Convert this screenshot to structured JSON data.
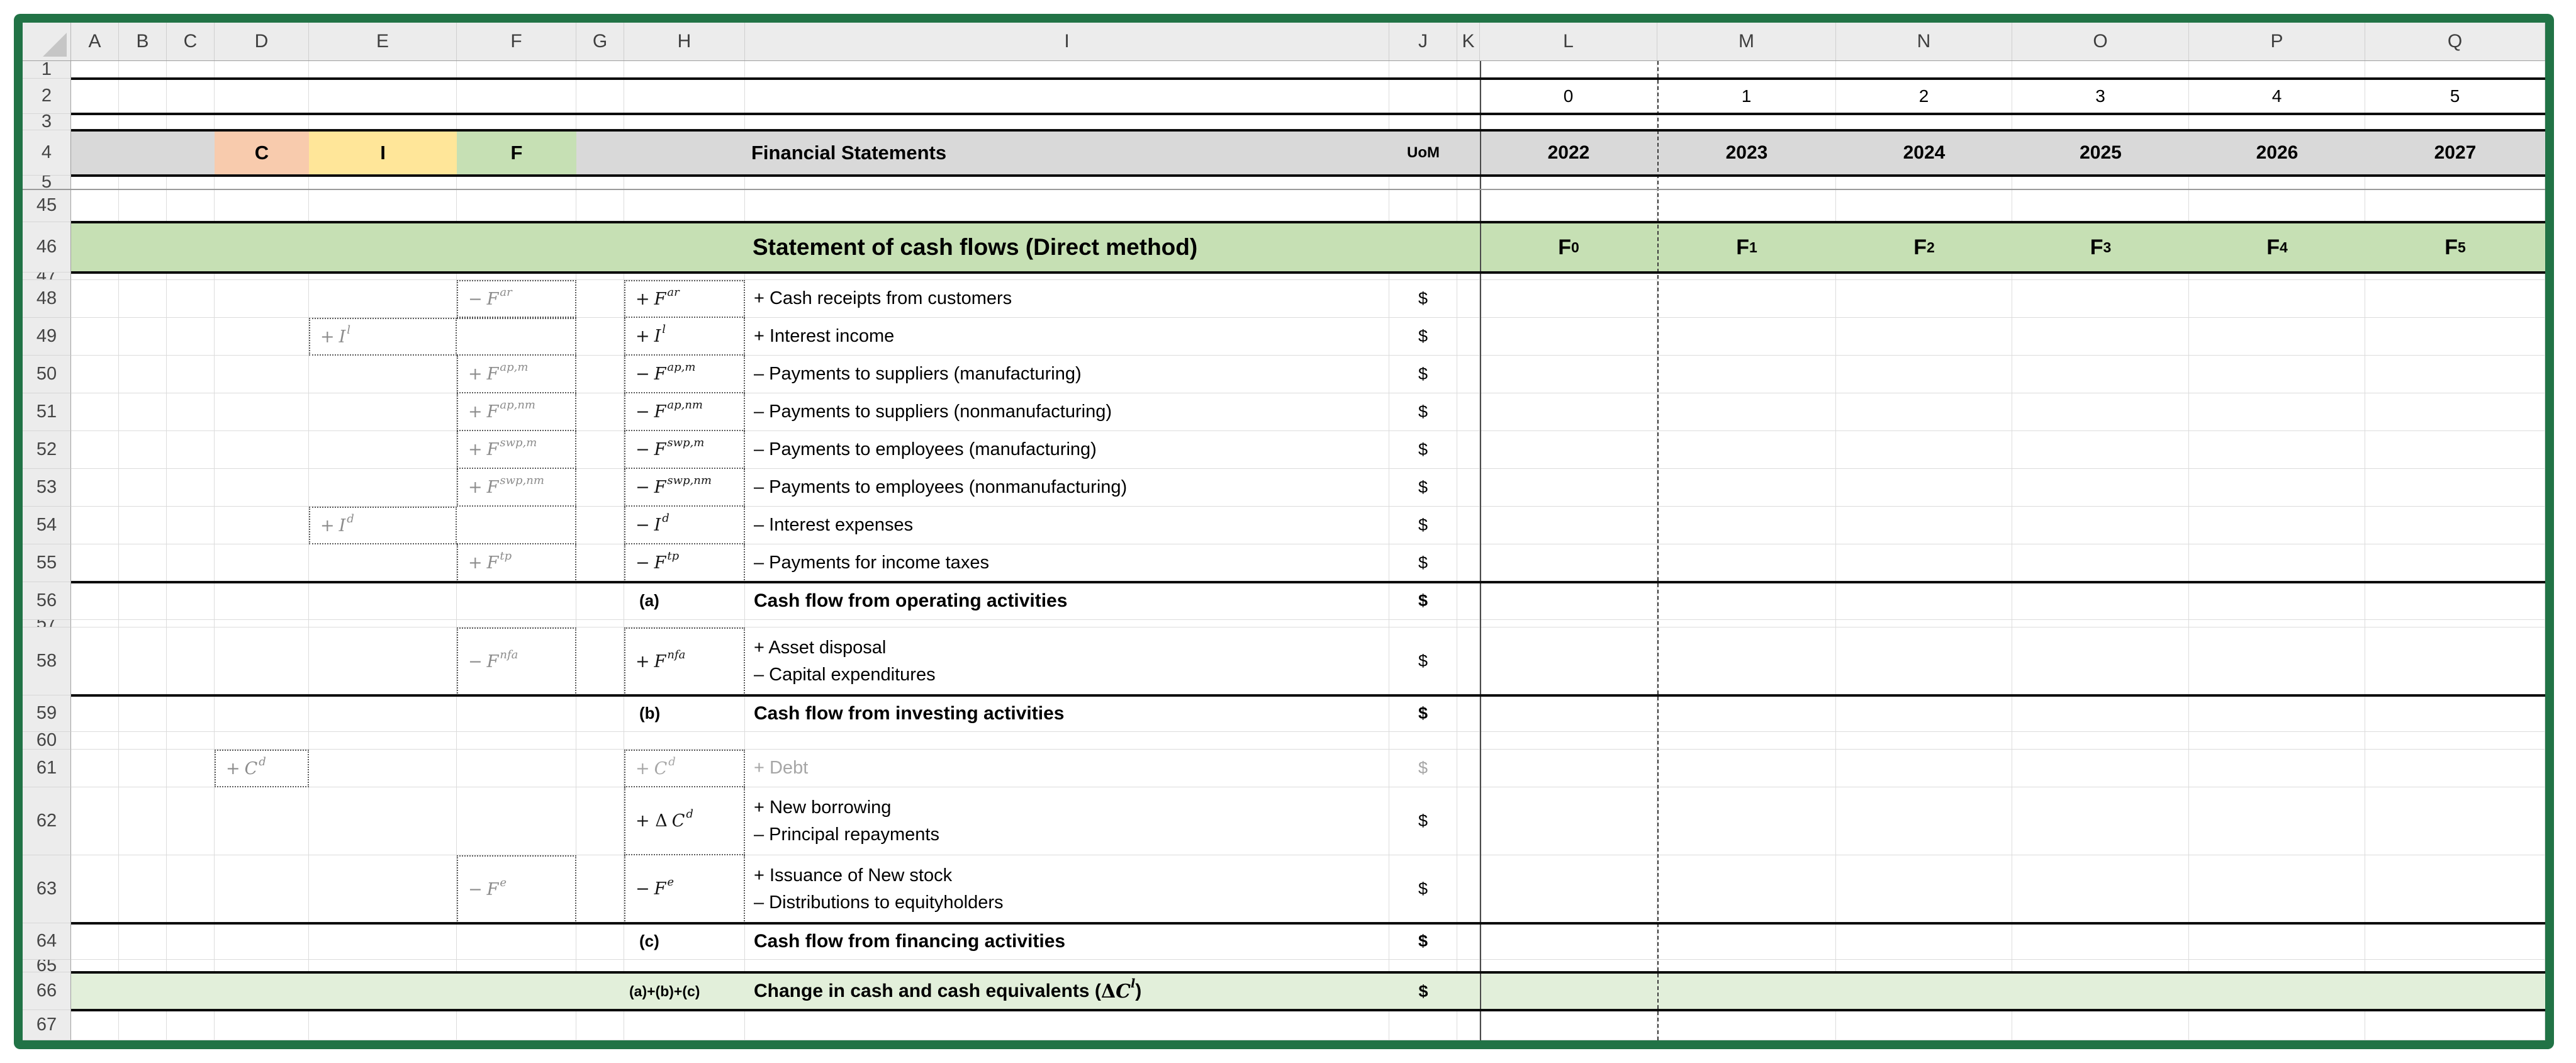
{
  "app": {
    "frame_color": "#217346"
  },
  "sheet": {
    "columns": [
      "A",
      "B",
      "C",
      "D",
      "E",
      "F",
      "G",
      "H",
      "I",
      "J",
      "K",
      "L",
      "M",
      "N",
      "O",
      "P",
      "Q"
    ],
    "colors": {
      "band_gray": "#d9d9d9",
      "band_green": "#c6e0b4",
      "band_lightgreen": "#e2efda",
      "cell_c": "#f8cbad",
      "cell_i": "#ffe699",
      "cell_f": "#c6e0b4"
    },
    "rows": [
      {
        "n": "1",
        "cells": []
      },
      {
        "n": "2",
        "cells": [
          {
            "c": "L",
            "k": "num",
            "t": "0"
          },
          {
            "c": "M",
            "k": "num",
            "t": "1"
          },
          {
            "c": "N",
            "k": "num",
            "t": "2"
          },
          {
            "c": "O",
            "k": "num",
            "t": "3"
          },
          {
            "c": "P",
            "k": "num",
            "t": "4"
          },
          {
            "c": "Q",
            "k": "num",
            "t": "5"
          }
        ]
      },
      {
        "n": "3",
        "cells": []
      },
      {
        "n": "4",
        "cells": [
          {
            "c": "D",
            "k": "cif",
            "t": "C",
            "bg": "cell_c"
          },
          {
            "c": "E",
            "k": "cif",
            "t": "I",
            "bg": "cell_i"
          },
          {
            "c": "F",
            "k": "cif",
            "t": "F",
            "bg": "cell_f"
          },
          {
            "c": "I",
            "k": "title",
            "t": "Financial Statements"
          },
          {
            "c": "J",
            "k": "uom",
            "t": "UoM"
          },
          {
            "c": "L",
            "k": "year",
            "t": "2022"
          },
          {
            "c": "M",
            "k": "year",
            "t": "2023"
          },
          {
            "c": "N",
            "k": "year",
            "t": "2024"
          },
          {
            "c": "O",
            "k": "year",
            "t": "2025"
          },
          {
            "c": "P",
            "k": "year",
            "t": "2026"
          },
          {
            "c": "Q",
            "k": "year",
            "t": "2027"
          }
        ]
      },
      {
        "n": "5",
        "cells": []
      },
      {
        "n": "45",
        "cells": []
      },
      {
        "n": "46",
        "cells": [
          {
            "c": "I",
            "k": "bigtitle",
            "t": "Statement of cash flows (Direct method)"
          },
          {
            "c": "L",
            "k": "fsub",
            "t": "F",
            "sub": "0"
          },
          {
            "c": "M",
            "k": "fsub",
            "t": "F",
            "sub": "1"
          },
          {
            "c": "N",
            "k": "fsub",
            "t": "F",
            "sub": "2"
          },
          {
            "c": "O",
            "k": "fsub",
            "t": "F",
            "sub": "3"
          },
          {
            "c": "P",
            "k": "fsub",
            "t": "F",
            "sub": "4"
          },
          {
            "c": "Q",
            "k": "fsub",
            "t": "F",
            "sub": "5"
          }
        ]
      },
      {
        "n": "47",
        "cells": []
      },
      {
        "n": "48",
        "cells": [
          {
            "c": "F",
            "k": "fml",
            "v": "gray",
            "m": {
              "s": "−",
              "b": "F",
              "p": "ar"
            }
          },
          {
            "c": "H",
            "k": "fml",
            "v": "black",
            "m": {
              "s": "+",
              "b": "F",
              "p": "ar"
            }
          },
          {
            "c": "I",
            "k": "lbl",
            "t": "+ Cash receipts from customers"
          },
          {
            "c": "J",
            "k": "usd",
            "t": "$"
          }
        ]
      },
      {
        "n": "49",
        "cells": [
          {
            "c": "E",
            "k": "fml",
            "v": "gray",
            "m": {
              "s": "+",
              "b": "I",
              "p": "l"
            }
          },
          {
            "c": "F",
            "k": "box"
          },
          {
            "c": "H",
            "k": "fml",
            "v": "black",
            "nt": 1,
            "m": {
              "s": "+",
              "b": "I",
              "p": "l"
            }
          },
          {
            "c": "I",
            "k": "lbl",
            "t": "+ Interest income"
          },
          {
            "c": "J",
            "k": "usd",
            "t": "$"
          }
        ]
      },
      {
        "n": "50",
        "cells": [
          {
            "c": "F",
            "k": "fml",
            "v": "gray",
            "nt": 1,
            "m": {
              "s": "+",
              "b": "F",
              "p": "ap,m"
            }
          },
          {
            "c": "H",
            "k": "fml",
            "v": "black",
            "nt": 1,
            "m": {
              "s": "−",
              "b": "F",
              "p": "ap,m"
            }
          },
          {
            "c": "I",
            "k": "lbl",
            "t": "– Payments to suppliers (manufacturing)"
          },
          {
            "c": "J",
            "k": "usd",
            "t": "$"
          }
        ]
      },
      {
        "n": "51",
        "cells": [
          {
            "c": "F",
            "k": "fml",
            "v": "gray",
            "nt": 1,
            "m": {
              "s": "+",
              "b": "F",
              "p": "ap,nm"
            }
          },
          {
            "c": "H",
            "k": "fml",
            "v": "black",
            "nt": 1,
            "m": {
              "s": "−",
              "b": "F",
              "p": "ap,nm"
            }
          },
          {
            "c": "I",
            "k": "lbl",
            "t": "– Payments to suppliers (nonmanufacturing)"
          },
          {
            "c": "J",
            "k": "usd",
            "t": "$"
          }
        ]
      },
      {
        "n": "52",
        "cells": [
          {
            "c": "F",
            "k": "fml",
            "v": "gray",
            "nt": 1,
            "m": {
              "s": "+",
              "b": "F",
              "p": "swp,m"
            }
          },
          {
            "c": "H",
            "k": "fml",
            "v": "black",
            "nt": 1,
            "m": {
              "s": "−",
              "b": "F",
              "p": "swp,m"
            }
          },
          {
            "c": "I",
            "k": "lbl",
            "t": "– Payments to employees (manufacturing)"
          },
          {
            "c": "J",
            "k": "usd",
            "t": "$"
          }
        ]
      },
      {
        "n": "53",
        "cells": [
          {
            "c": "F",
            "k": "fml",
            "v": "gray",
            "nt": 1,
            "m": {
              "s": "+",
              "b": "F",
              "p": "swp,nm"
            }
          },
          {
            "c": "H",
            "k": "fml",
            "v": "black",
            "nt": 1,
            "m": {
              "s": "−",
              "b": "F",
              "p": "swp,nm"
            }
          },
          {
            "c": "I",
            "k": "lbl",
            "t": "– Payments to employees (nonmanufacturing)"
          },
          {
            "c": "J",
            "k": "usd",
            "t": "$"
          }
        ]
      },
      {
        "n": "54",
        "cells": [
          {
            "c": "E",
            "k": "fml",
            "v": "gray",
            "m": {
              "s": "+",
              "b": "I",
              "p": "d"
            }
          },
          {
            "c": "F",
            "k": "box",
            "nt": 1
          },
          {
            "c": "H",
            "k": "fml",
            "v": "black",
            "nt": 1,
            "m": {
              "s": "−",
              "b": "I",
              "p": "d"
            }
          },
          {
            "c": "I",
            "k": "lbl",
            "t": "– Interest expenses"
          },
          {
            "c": "J",
            "k": "usd",
            "t": "$"
          }
        ]
      },
      {
        "n": "55",
        "cells": [
          {
            "c": "F",
            "k": "fml",
            "v": "gray",
            "nt": 1,
            "m": {
              "s": "+",
              "b": "F",
              "p": "tp"
            }
          },
          {
            "c": "H",
            "k": "fml",
            "v": "black",
            "nt": 1,
            "m": {
              "s": "−",
              "b": "F",
              "p": "tp"
            }
          },
          {
            "c": "I",
            "k": "lbl",
            "t": "– Payments for income taxes"
          },
          {
            "c": "J",
            "k": "usd",
            "t": "$"
          }
        ]
      },
      {
        "n": "56",
        "cells": [
          {
            "c": "H",
            "k": "tag",
            "t": "(a)"
          },
          {
            "c": "I",
            "k": "sum",
            "t": "Cash flow from operating activities"
          },
          {
            "c": "J",
            "k": "usd",
            "t": "$",
            "b": 1
          }
        ]
      },
      {
        "n": "57",
        "cells": []
      },
      {
        "n": "58",
        "cells": [
          {
            "c": "F",
            "k": "fml",
            "v": "gray",
            "m": {
              "s": "−",
              "b": "F",
              "p": "nfa"
            }
          },
          {
            "c": "H",
            "k": "fml",
            "v": "black",
            "m": {
              "s": "+",
              "b": "F",
              "p": "nfa"
            }
          },
          {
            "c": "I",
            "k": "lbl2",
            "lines": [
              "+ Asset disposal",
              "– Capital expenditures"
            ]
          },
          {
            "c": "J",
            "k": "usd",
            "t": "$"
          }
        ]
      },
      {
        "n": "59",
        "cells": [
          {
            "c": "H",
            "k": "tag",
            "t": "(b)"
          },
          {
            "c": "I",
            "k": "sum",
            "t": "Cash flow from investing activities"
          },
          {
            "c": "J",
            "k": "usd",
            "t": "$",
            "b": 1
          }
        ]
      },
      {
        "n": "60",
        "cells": []
      },
      {
        "n": "61",
        "cells": [
          {
            "c": "D",
            "k": "fml",
            "v": "gray",
            "m": {
              "s": "+",
              "b": "C",
              "p": "d"
            }
          },
          {
            "c": "H",
            "k": "fml",
            "v": "gray2",
            "m": {
              "s": "+",
              "b": "C",
              "p": "d"
            }
          },
          {
            "c": "I",
            "k": "lbl",
            "t": "+ Debt",
            "gray": 1
          },
          {
            "c": "J",
            "k": "usd",
            "t": "$",
            "gray": 1
          }
        ]
      },
      {
        "n": "62",
        "cells": [
          {
            "c": "H",
            "k": "fml",
            "v": "black",
            "nt": 1,
            "m": {
              "s": "+ Δ",
              "b": "C",
              "p": "d"
            }
          },
          {
            "c": "I",
            "k": "lbl2",
            "lines": [
              "+ New borrowing",
              "– Principal repayments"
            ]
          },
          {
            "c": "J",
            "k": "usd",
            "t": "$"
          }
        ]
      },
      {
        "n": "63",
        "cells": [
          {
            "c": "F",
            "k": "fml",
            "v": "gray",
            "m": {
              "s": "−",
              "b": "F",
              "p": "e"
            }
          },
          {
            "c": "H",
            "k": "fml",
            "v": "black",
            "nt": 1,
            "m": {
              "s": "−",
              "b": "F",
              "p": "e"
            }
          },
          {
            "c": "I",
            "k": "lbl2",
            "lines": [
              "+ Issuance of New stock",
              "– Distributions to equityholders"
            ]
          },
          {
            "c": "J",
            "k": "usd",
            "t": "$"
          }
        ]
      },
      {
        "n": "64",
        "cells": [
          {
            "c": "H",
            "k": "tag",
            "t": "(c)"
          },
          {
            "c": "I",
            "k": "sum",
            "t": "Cash flow from financing activities"
          },
          {
            "c": "J",
            "k": "usd",
            "t": "$",
            "b": 1
          }
        ]
      },
      {
        "n": "65",
        "cells": []
      },
      {
        "n": "66",
        "cells": [
          {
            "c": "H",
            "k": "tagsmall",
            "t": "(a)+(b)+(c)"
          },
          {
            "c": "I",
            "k": "t66",
            "runs": [
              {
                "t": "Change in cash and cash equivalents ("
              },
              {
                "t": "Δ",
                "m": "d"
              },
              {
                "t": "C",
                "m": "i"
              },
              {
                "t": "l",
                "m": "s"
              },
              {
                "t": ")"
              }
            ]
          },
          {
            "c": "J",
            "k": "usd",
            "t": "$",
            "b": 1
          }
        ]
      },
      {
        "n": "67",
        "cells": []
      }
    ]
  }
}
